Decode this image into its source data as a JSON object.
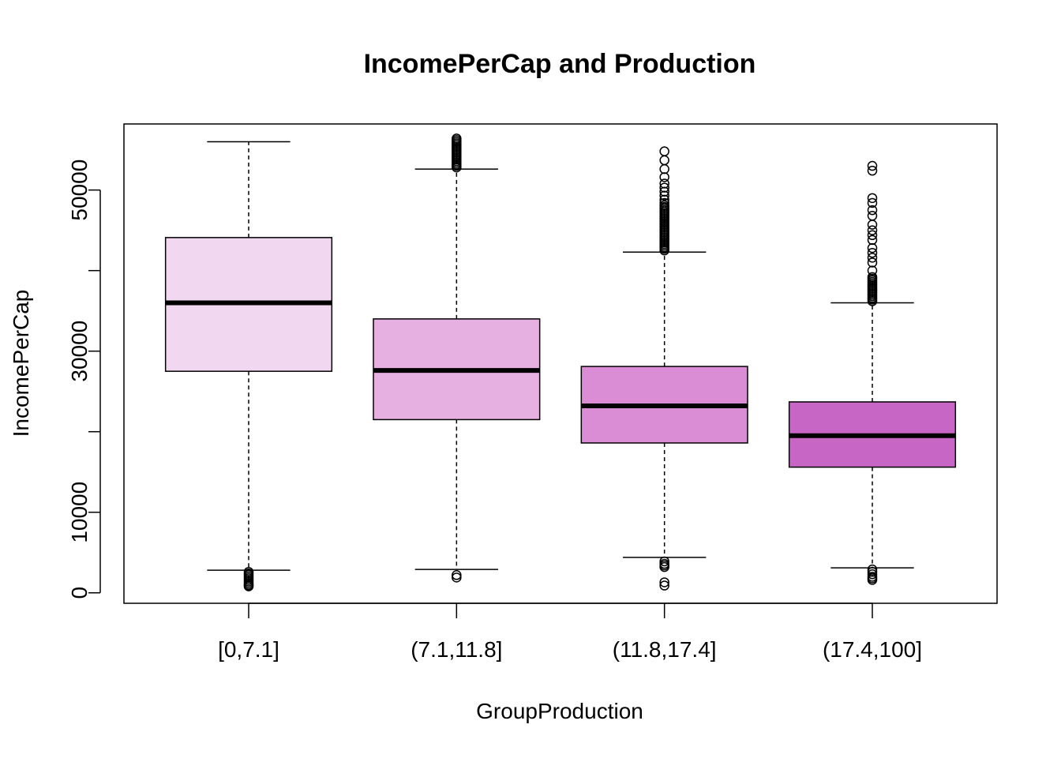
{
  "chart_data": {
    "type": "box",
    "title": "IncomePerCap and Production",
    "xlabel": "GroupProduction",
    "ylabel": "IncomePerCap",
    "categories": [
      "[0,7.1]",
      "(7.1,11.8]",
      "(11.8,17.4]",
      "(17.4,100]"
    ],
    "yticks": [
      0,
      10000,
      20000,
      30000,
      40000,
      50000
    ],
    "ytick_labels": [
      "0",
      "10000",
      "",
      "30000",
      "",
      "50000"
    ],
    "ylim": [
      -1300,
      58200
    ],
    "grid": false,
    "box_colors": [
      "#F2D7F0",
      "#E6B0E1",
      "#DA8DD5",
      "#C866C6"
    ],
    "boxes": [
      {
        "category": "[0,7.1]",
        "whisker_low": 2800,
        "q1": 27500,
        "median": 36000,
        "q3": 44100,
        "whisker_high": 56000,
        "outliers": [
          2600,
          2400,
          2200,
          2000,
          1800,
          1600,
          1400,
          1200,
          1000,
          900,
          800
        ]
      },
      {
        "category": "(7.1,11.8]",
        "whisker_low": 2900,
        "q1": 21500,
        "median": 27600,
        "q3": 34000,
        "whisker_high": 52600,
        "outliers": [
          2200,
          1900,
          52800,
          53000,
          53200,
          53400,
          53600,
          53800,
          54000,
          54200,
          54400,
          54600,
          54800,
          55000,
          55200,
          55400,
          55600,
          55800,
          56000,
          56200,
          56400
        ]
      },
      {
        "category": "(11.8,17.4]",
        "whisker_low": 4400,
        "q1": 18600,
        "median": 23200,
        "q3": 28100,
        "whisker_high": 42300,
        "outliers": [
          3900,
          3600,
          3400,
          3200,
          1300,
          900,
          42500,
          42700,
          42900,
          43100,
          43300,
          43500,
          43700,
          43900,
          44100,
          44300,
          44500,
          44700,
          44900,
          45100,
          45300,
          45500,
          45700,
          45900,
          46100,
          46300,
          46500,
          46700,
          46900,
          47100,
          47300,
          47500,
          47700,
          47900,
          48100,
          48400,
          48800,
          49300,
          49800,
          50300,
          50800,
          51600,
          52600,
          53700,
          54800
        ]
      },
      {
        "category": "(17.4,100]",
        "whisker_low": 3100,
        "q1": 15600,
        "median": 19500,
        "q3": 23700,
        "whisker_high": 36000,
        "outliers": [
          2900,
          2600,
          2300,
          2000,
          1800,
          1600,
          36200,
          36400,
          36600,
          36800,
          37000,
          37200,
          37400,
          37600,
          37800,
          38000,
          38200,
          38400,
          38600,
          38800,
          39000,
          39200,
          40000,
          41000,
          41600,
          42200,
          42800,
          43800,
          44400,
          45000,
          45700,
          46800,
          47500,
          48400,
          49000,
          52400,
          53000
        ]
      }
    ]
  }
}
